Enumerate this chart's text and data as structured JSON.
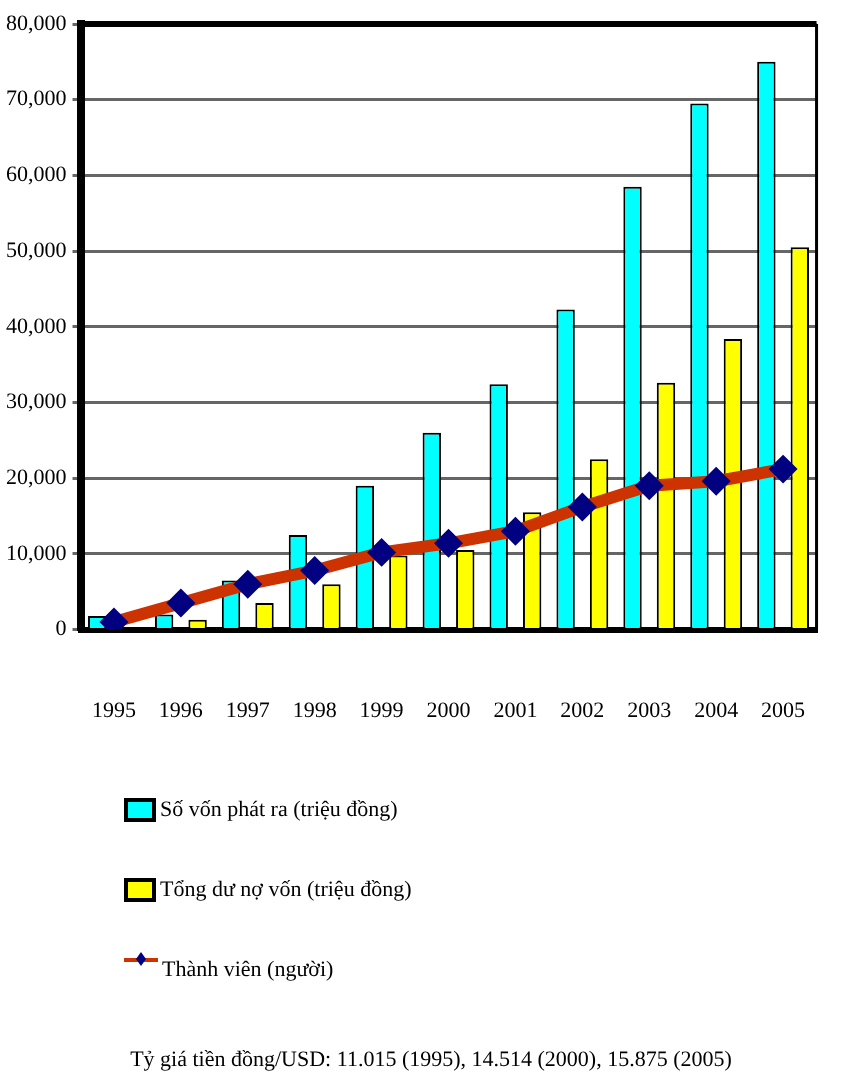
{
  "chart_data": {
    "type": "bar",
    "categories": [
      "1995",
      "1996",
      "1997",
      "1998",
      "1999",
      "2000",
      "2001",
      "2002",
      "2003",
      "2004",
      "2005"
    ],
    "series": [
      {
        "name": "Số vốn phát ra (triệu đồng)",
        "color": "#00ffff",
        "values": [
          1800,
          2000,
          6500,
          12500,
          19000,
          26000,
          32400,
          42300,
          58500,
          69500,
          75000
        ]
      },
      {
        "name": "Tổng dư nợ vốn (triệu đồng)",
        "color": "#ffff00",
        "values": [
          null,
          1300,
          3500,
          6000,
          9800,
          10500,
          15500,
          22500,
          32600,
          38400,
          50500
        ]
      },
      {
        "name": "Thành viên (người)",
        "type": "line",
        "color": "#cc3300",
        "marker": "diamond",
        "values": [
          1000,
          3500,
          6000,
          7800,
          10200,
          11400,
          13000,
          16200,
          19000,
          19600,
          21200
        ]
      }
    ],
    "ylim": [
      0,
      80000
    ],
    "yticks": [
      {
        "value": 0,
        "label": "0"
      },
      {
        "value": 10000,
        "label": "10,000"
      },
      {
        "value": 20000,
        "label": "20,000"
      },
      {
        "value": 30000,
        "label": "30,000"
      },
      {
        "value": 40000,
        "label": "40,000"
      },
      {
        "value": 50000,
        "label": "50,000"
      },
      {
        "value": 60000,
        "label": "60,000"
      },
      {
        "value": 70000,
        "label": "70,000"
      },
      {
        "value": 80000,
        "label": "80,000"
      }
    ],
    "grid": "y",
    "legend": "bottom",
    "annotations": [
      "Tỷ giá tiền đồng/USD: 11.015 (1995), 14.514 (2000), 15.875 (2005)"
    ]
  }
}
